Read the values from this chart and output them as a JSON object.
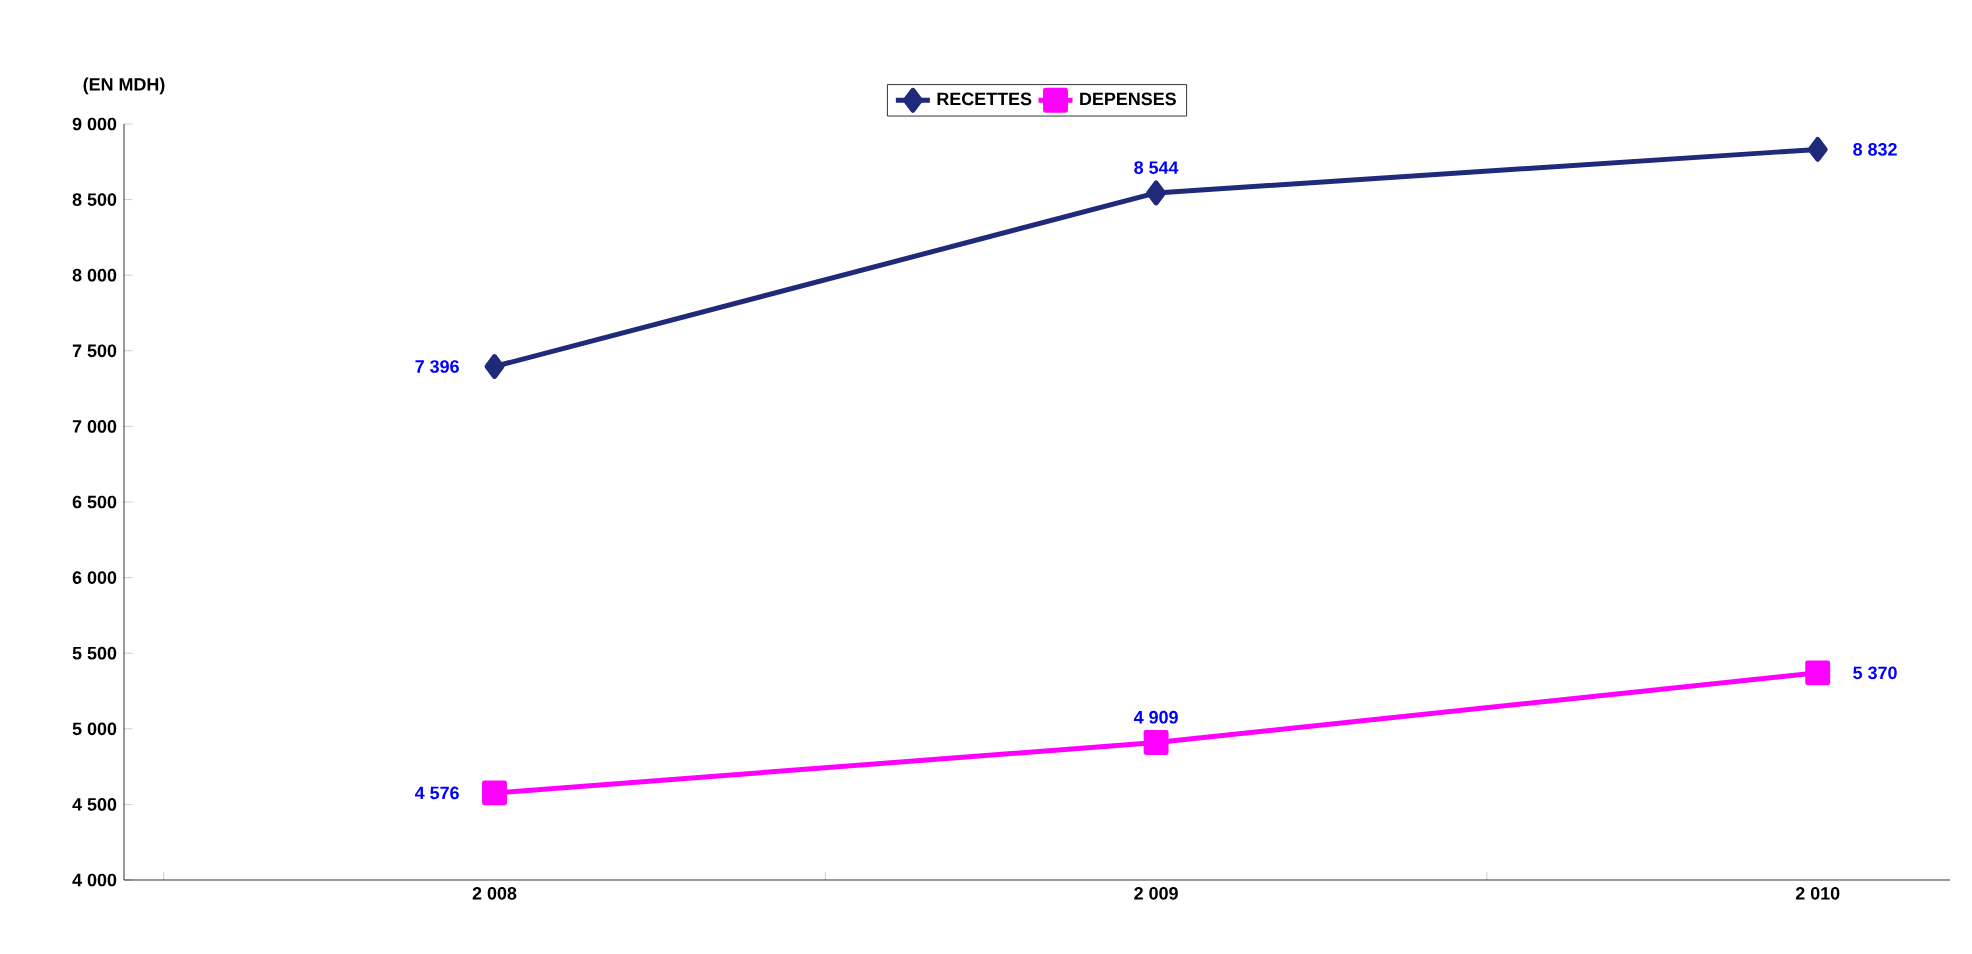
{
  "chart_data": {
    "type": "line",
    "ylabel": "(EN MDH)",
    "categories": [
      "2 008",
      "2 009",
      "2 010"
    ],
    "series": [
      {
        "name": "RECETTES",
        "color": "#1f2a7a",
        "marker": "diamond",
        "values": [
          7396,
          8544,
          8832
        ],
        "value_labels": [
          "7 396",
          "8 544",
          "8 832"
        ]
      },
      {
        "name": "DEPENSES",
        "color": "#ff00ff",
        "marker": "square",
        "values": [
          4576,
          4909,
          5370
        ],
        "value_labels": [
          "4 576",
          "4 909",
          "5 370"
        ]
      }
    ],
    "ylim": [
      4000,
      9000
    ],
    "yticks": [
      {
        "value": 4000,
        "label": "4 000"
      },
      {
        "value": 4500,
        "label": "4 500"
      },
      {
        "value": 5000,
        "label": "5 000"
      },
      {
        "value": 5500,
        "label": "5 500"
      },
      {
        "value": 6000,
        "label": "6 000"
      },
      {
        "value": 6500,
        "label": "6 500"
      },
      {
        "value": 7000,
        "label": "7 000"
      },
      {
        "value": 7500,
        "label": "7 500"
      },
      {
        "value": 8000,
        "label": "8 000"
      },
      {
        "value": 8500,
        "label": "8 500"
      },
      {
        "value": 9000,
        "label": "9 000"
      }
    ],
    "grid": false,
    "legend": "top",
    "line_style": "solid"
  }
}
